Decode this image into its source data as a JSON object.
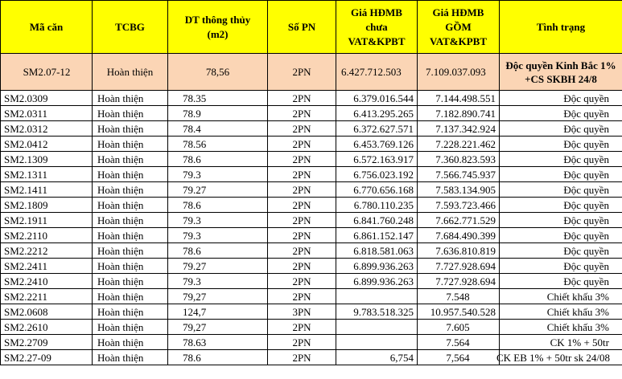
{
  "headers": [
    [
      "Mã căn"
    ],
    [
      "TCBG"
    ],
    [
      "DT thông thủy",
      "(m2)"
    ],
    [
      "Số PN"
    ],
    [
      "Giá HĐMB",
      "chưa",
      "VAT&KPBT"
    ],
    [
      "Giá HĐMB",
      "GỒM",
      "VAT&KPBT"
    ],
    [
      "Tình trạng"
    ]
  ],
  "highlight_row": {
    "code": "SM2.07-12",
    "type": "Hoàn thiện",
    "area": "78,56",
    "rooms": "2PN",
    "price_excl": "6.427.712.503",
    "price_incl": "7.109.037.093",
    "status": "Độc quyền Kinh Bắc 1% +CS SKBH 24/8"
  },
  "rows": [
    {
      "code": "SM2.0309",
      "type": "Hoàn thiện",
      "area": "78.35",
      "rooms": "2PN",
      "price_excl": "6.379.016.544",
      "price_incl": "7.144.498.551",
      "status": "Độc quyền"
    },
    {
      "code": "SM2.0311",
      "type": "Hoàn thiện",
      "area": "78.9",
      "rooms": "2PN",
      "price_excl": "6.413.295.265",
      "price_incl": "7.182.890.741",
      "status": "Độc quyền"
    },
    {
      "code": "SM2.0312",
      "type": "Hoàn thiện",
      "area": "78.4",
      "rooms": "2PN",
      "price_excl": "6.372.627.571",
      "price_incl": "7.137.342.924",
      "status": "Độc quyền"
    },
    {
      "code": "SM2.0412",
      "type": "Hoàn thiện",
      "area": "78.56",
      "rooms": "2PN",
      "price_excl": "6.453.769.126",
      "price_incl": "7.228.221.462",
      "status": "Độc quyền"
    },
    {
      "code": "SM2.1309",
      "type": "Hoàn thiện",
      "area": "78.6",
      "rooms": "2PN",
      "price_excl": "6.572.163.917",
      "price_incl": "7.360.823.593",
      "status": "Độc quyền"
    },
    {
      "code": "SM2.1311",
      "type": "Hoàn thiện",
      "area": "79.3",
      "rooms": "2PN",
      "price_excl": "6.756.023.192",
      "price_incl": "7.566.745.937",
      "status": "Độc quyền"
    },
    {
      "code": "SM2.1411",
      "type": "Hoàn thiện",
      "area": "79.27",
      "rooms": "2PN",
      "price_excl": "6.770.656.168",
      "price_incl": "7.583.134.905",
      "status": "Độc quyền"
    },
    {
      "code": "SM2.1809",
      "type": "Hoàn thiện",
      "area": "78.6",
      "rooms": "2PN",
      "price_excl": "6.780.110.235",
      "price_incl": "7.593.723.466",
      "status": "Độc quyền"
    },
    {
      "code": "SM2.1911",
      "type": "Hoàn thiện",
      "area": "79.3",
      "rooms": "2PN",
      "price_excl": "6.841.760.248",
      "price_incl": "7.662.771.529",
      "status": "Độc quyền"
    },
    {
      "code": "SM2.2110",
      "type": "Hoàn thiện",
      "area": "79.3",
      "rooms": "2PN",
      "price_excl": "6.861.152.147",
      "price_incl": "7.684.490.399",
      "status": "Độc quyền"
    },
    {
      "code": "SM2.2212",
      "type": "Hoàn thiện",
      "area": "78.6",
      "rooms": "2PN",
      "price_excl": "6.818.581.063",
      "price_incl": "7.636.810.819",
      "status": "Độc quyền"
    },
    {
      "code": "SM2.2411",
      "type": "Hoàn thiện",
      "area": "79.27",
      "rooms": "2PN",
      "price_excl": "6.899.936.263",
      "price_incl": "7.727.928.694",
      "status": "Độc quyền"
    },
    {
      "code": "SM2.2410",
      "type": "Hoàn thiện",
      "area": "79.3",
      "rooms": "2PN",
      "price_excl": "6.899.936.263",
      "price_incl": "7.727.928.694",
      "status": "Độc quyền"
    },
    {
      "code": "SM2.2211",
      "type": "Hoàn thiện",
      "area": "79,27",
      "rooms": "2PN",
      "price_excl": "",
      "price_incl": "7.548",
      "status": "Chiết khấu 3%"
    },
    {
      "code": "SM2.0608",
      "type": "Hoàn thiện",
      "area": "124,7",
      "rooms": "3PN",
      "price_excl": "9.783.518.325",
      "price_incl": "10.957.540.528",
      "status": "Chiết khấu 3%"
    },
    {
      "code": "SM2.2610",
      "type": "Hoàn thiện",
      "area": "79,27",
      "rooms": "2PN",
      "price_excl": "",
      "price_incl": "7.605",
      "status": "Chiết khấu 3%"
    },
    {
      "code": "SM2.2709",
      "type": "Hoàn thiện",
      "area": "78.63",
      "rooms": "2PN",
      "price_excl": "",
      "price_incl": "7.564",
      "status": "CK 1% + 50tr"
    },
    {
      "code": "SM2.27-09",
      "type": "Hoàn thiện",
      "area": "78.6",
      "rooms": "2PN",
      "price_excl": "6,754",
      "price_incl": "7,564",
      "status": "CK EB 1% + 50tr sk 24/08"
    }
  ]
}
